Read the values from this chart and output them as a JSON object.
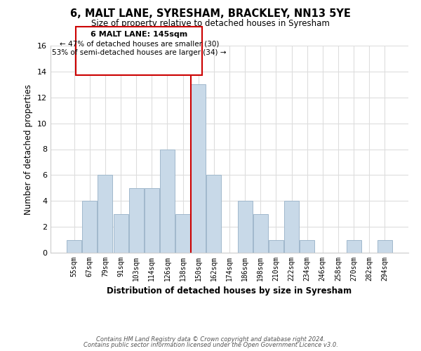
{
  "title": "6, MALT LANE, SYRESHAM, BRACKLEY, NN13 5YE",
  "subtitle": "Size of property relative to detached houses in Syresham",
  "xlabel": "Distribution of detached houses by size in Syresham",
  "ylabel": "Number of detached properties",
  "bin_labels": [
    "55sqm",
    "67sqm",
    "79sqm",
    "91sqm",
    "103sqm",
    "114sqm",
    "126sqm",
    "138sqm",
    "150sqm",
    "162sqm",
    "174sqm",
    "186sqm",
    "198sqm",
    "210sqm",
    "222sqm",
    "234sqm",
    "246sqm",
    "258sqm",
    "270sqm",
    "282sqm",
    "294sqm"
  ],
  "bar_heights": [
    1,
    4,
    6,
    3,
    5,
    5,
    8,
    3,
    13,
    6,
    0,
    4,
    3,
    1,
    4,
    1,
    0,
    0,
    1,
    0,
    1
  ],
  "bar_color": "#c8d9e8",
  "bar_edgecolor": "#a0b8cc",
  "highlight_bin": 8,
  "highlight_color": "#cc0000",
  "ylim": [
    0,
    16
  ],
  "yticks": [
    0,
    2,
    4,
    6,
    8,
    10,
    12,
    14,
    16
  ],
  "annotation_title": "6 MALT LANE: 145sqm",
  "annotation_line1": "← 47% of detached houses are smaller (30)",
  "annotation_line2": "53% of semi-detached houses are larger (34) →",
  "footnote1": "Contains HM Land Registry data © Crown copyright and database right 2024.",
  "footnote2": "Contains public sector information licensed under the Open Government Licence v3.0.",
  "background_color": "#ffffff",
  "grid_color": "#dddddd"
}
